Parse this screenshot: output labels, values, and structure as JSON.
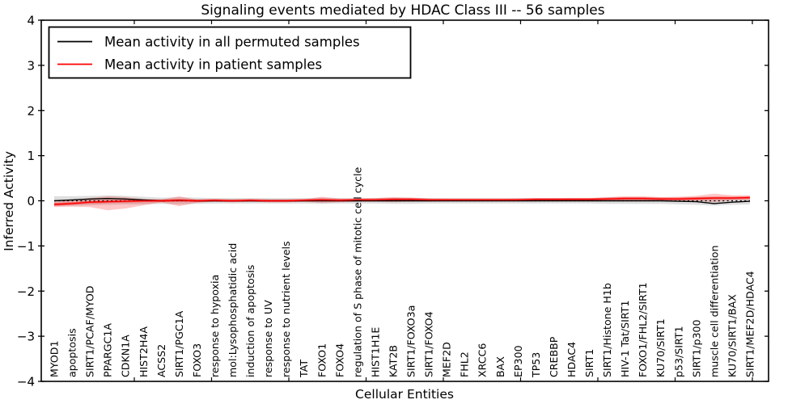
{
  "chart_data": {
    "type": "line",
    "title": "Signaling events mediated by HDAC Class III -- 56 samples",
    "xlabel": "Cellular Entities",
    "ylabel": "Inferred Activity",
    "ylim": [
      -4,
      4
    ],
    "ytick_step": 1,
    "grid": false,
    "legend_position": "upper left",
    "zero_line_style": "dotted",
    "categories": [
      "MYOD1",
      "apoptosis",
      "SIRT1/PCAF/MYOD",
      "PPARGC1A",
      "CDKN1A",
      "HIST2H4A",
      "ACSS2",
      "SIRT1/PGC1A",
      "FOXO3",
      "response to hypoxia",
      "mol:Lysophosphatidic acid",
      "induction of apoptosis",
      "response to UV",
      "response to nutrient levels",
      "TAT",
      "FOXO1",
      "FOXO4",
      "regulation of S phase of mitotic cell cycle",
      "HIST1H1E",
      "KAT2B",
      "SIRT1/FOXO3a",
      "SIRT1/FOXO4",
      "MEF2D",
      "FHL2",
      "XRCC6",
      "BAX",
      "EP300",
      "TP53",
      "CREBBP",
      "HDAC4",
      "SIRT1",
      "SIRT1/Histone H1b",
      "HIV-1 Tat/SIRT1",
      "FOXO1/FHL2/SIRT1",
      "KU70/SIRT1",
      "p53/SIRT1",
      "SIRT1/p300",
      "muscle cell differentiation",
      "KU70/SIRT1/BAX",
      "SIRT1/MEF2D/HDAC4"
    ],
    "series": [
      {
        "name": "Mean activity in all permuted samples",
        "color": "#000000",
        "values": [
          0.0,
          0.02,
          0.04,
          0.05,
          0.04,
          0.02,
          0.0,
          0.01,
          0.0,
          0.0,
          0.0,
          0.0,
          0.0,
          0.0,
          0.0,
          0.0,
          0.0,
          0.0,
          0.0,
          0.0,
          0.0,
          0.0,
          0.0,
          0.0,
          0.0,
          0.0,
          0.0,
          0.0,
          0.0,
          0.0,
          0.0,
          0.0,
          0.0,
          0.0,
          0.0,
          -0.01,
          -0.02,
          -0.06,
          -0.03,
          -0.01
        ]
      },
      {
        "name": "Mean activity in patient samples",
        "color": "#ff0000",
        "values": [
          -0.08,
          -0.06,
          -0.03,
          -0.02,
          -0.01,
          0.0,
          0.0,
          0.01,
          0.0,
          0.01,
          0.0,
          0.01,
          0.0,
          0.0,
          0.01,
          0.02,
          0.01,
          0.02,
          0.02,
          0.03,
          0.03,
          0.02,
          0.02,
          0.02,
          0.02,
          0.02,
          0.02,
          0.03,
          0.03,
          0.03,
          0.03,
          0.04,
          0.05,
          0.05,
          0.04,
          0.04,
          0.05,
          0.06,
          0.06,
          0.07
        ]
      }
    ],
    "bands": [
      {
        "name": "permuted samples spread",
        "color": "#999999",
        "opacity": 0.32,
        "upper": [
          0.1,
          0.1,
          0.11,
          0.12,
          0.11,
          0.09,
          0.07,
          0.08,
          0.07,
          0.06,
          0.06,
          0.06,
          0.06,
          0.06,
          0.06,
          0.07,
          0.06,
          0.06,
          0.06,
          0.07,
          0.07,
          0.06,
          0.06,
          0.06,
          0.06,
          0.06,
          0.06,
          0.06,
          0.06,
          0.06,
          0.06,
          0.07,
          0.07,
          0.07,
          0.07,
          0.07,
          0.08,
          0.09,
          0.08,
          0.08
        ],
        "lower": [
          -0.12,
          -0.11,
          -0.1,
          -0.09,
          -0.08,
          -0.08,
          -0.07,
          -0.08,
          -0.07,
          -0.06,
          -0.06,
          -0.06,
          -0.06,
          -0.06,
          -0.06,
          -0.07,
          -0.06,
          -0.06,
          -0.06,
          -0.07,
          -0.07,
          -0.06,
          -0.06,
          -0.06,
          -0.06,
          -0.06,
          -0.06,
          -0.06,
          -0.06,
          -0.06,
          -0.06,
          -0.07,
          -0.07,
          -0.07,
          -0.07,
          -0.08,
          -0.09,
          -0.11,
          -0.09,
          -0.08
        ]
      },
      {
        "name": "patient samples spread",
        "color": "#ff0000",
        "opacity": 0.22,
        "upper": [
          -0.02,
          0.02,
          0.06,
          0.1,
          0.08,
          0.04,
          0.02,
          0.1,
          0.02,
          0.03,
          0.02,
          0.03,
          0.02,
          0.02,
          0.03,
          0.09,
          0.05,
          0.05,
          0.06,
          0.08,
          0.07,
          0.05,
          0.04,
          0.04,
          0.04,
          0.04,
          0.05,
          0.05,
          0.05,
          0.06,
          0.06,
          0.08,
          0.1,
          0.1,
          0.08,
          0.09,
          0.11,
          0.16,
          0.12,
          0.12
        ],
        "lower": [
          -0.14,
          -0.13,
          -0.14,
          -0.21,
          -0.17,
          -0.1,
          -0.03,
          -0.12,
          -0.04,
          -0.02,
          -0.02,
          -0.02,
          -0.02,
          -0.02,
          -0.02,
          -0.05,
          -0.03,
          -0.02,
          -0.02,
          -0.03,
          -0.02,
          -0.02,
          -0.01,
          -0.01,
          -0.01,
          -0.01,
          -0.01,
          -0.01,
          0.0,
          0.0,
          0.0,
          0.0,
          0.01,
          0.01,
          0.0,
          0.0,
          0.0,
          -0.03,
          0.01,
          0.02
        ]
      }
    ],
    "inner_band": {
      "follows_series": "Mean activity in patient samples",
      "halfwidth": 0.03,
      "color": "#ff0000",
      "opacity": 0.4
    }
  }
}
